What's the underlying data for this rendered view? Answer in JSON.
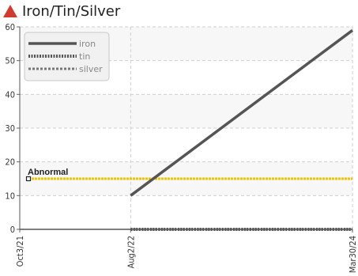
{
  "title": "Iron/Tin/Silver",
  "colors": {
    "accent": "#d03a2f",
    "threshold": "#f2c200",
    "iron": "#555555",
    "tin": "#555555",
    "silver": "#777777",
    "plot_band": "#f7f7f7"
  },
  "icon": "warning-triangle-icon",
  "chart_data": {
    "type": "line",
    "title": "Iron/Tin/Silver",
    "xlabel": "",
    "ylabel": "",
    "ylim": [
      0,
      60
    ],
    "yticks": [
      0,
      10,
      20,
      30,
      40,
      50,
      60
    ],
    "xticks": [
      "Oct3/21",
      "Aug2/22",
      "Mar30/24"
    ],
    "x_tick_dates": [
      "2021-10-03",
      "2022-08-02",
      "2024-03-30"
    ],
    "grid": true,
    "legend_position": "top-left",
    "series": [
      {
        "name": "iron",
        "style": "solid",
        "points": [
          {
            "x": "2022-08-02",
            "y": 10
          },
          {
            "x": "2024-03-30",
            "y": 59
          }
        ]
      },
      {
        "name": "tin",
        "style": "dotted",
        "points": [
          {
            "x": "2022-08-02",
            "y": 0
          },
          {
            "x": "2024-03-30",
            "y": 0
          }
        ]
      },
      {
        "name": "silver",
        "style": "dashed",
        "points": [
          {
            "x": "2022-08-02",
            "y": 0
          },
          {
            "x": "2024-03-30",
            "y": 0
          }
        ]
      }
    ],
    "threshold": {
      "label": "Abnormal",
      "y": 15
    }
  }
}
